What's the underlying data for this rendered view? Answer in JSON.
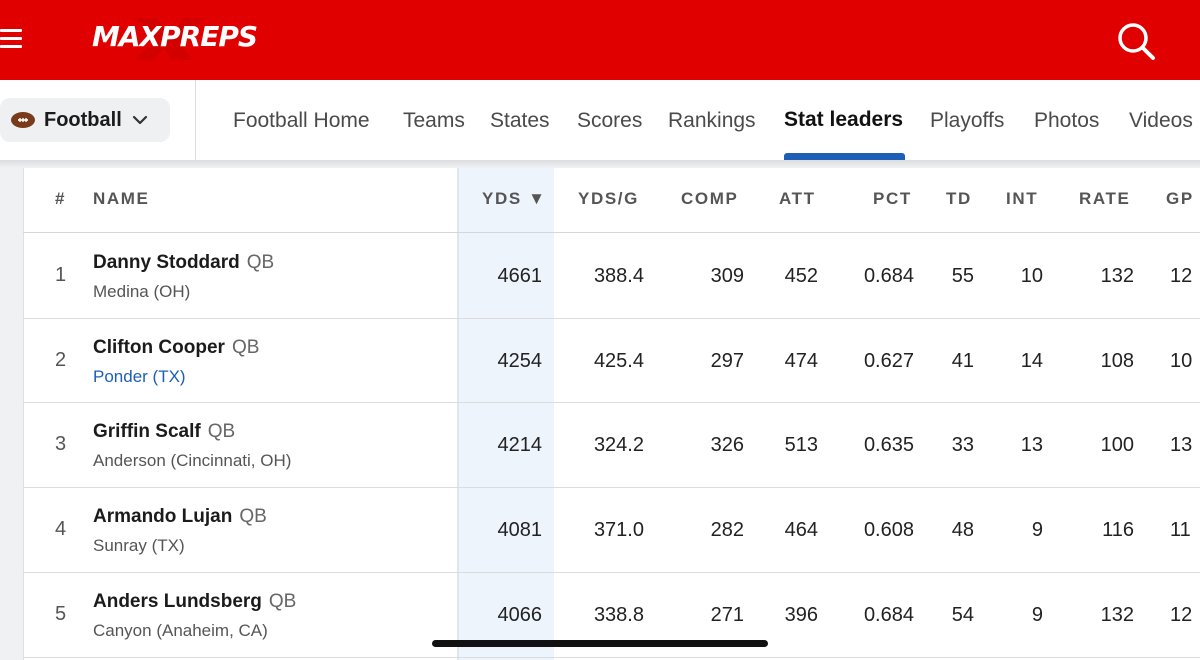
{
  "topbar": {
    "brand": "MAXPREPS",
    "bg_color": "#e00000",
    "menu_icon": "hamburger-icon",
    "search_icon": "search-icon"
  },
  "subnav": {
    "sport": "Football",
    "sport_icon": "football-icon",
    "links": [
      "Football Home",
      "Teams",
      "States",
      "Scores",
      "Rankings",
      "Stat leaders",
      "Playoffs",
      "Photos",
      "Videos"
    ],
    "active": "Stat leaders",
    "accent_color": "#1d5fb5"
  },
  "table": {
    "headers": {
      "rank": "#",
      "name": "NAME",
      "yds": "YDS ▼",
      "ydsg": "YDS/G",
      "comp": "COMP",
      "att": "ATT",
      "pct": "PCT",
      "td": "TD",
      "int": "INT",
      "rate": "RATE",
      "gp": "GP"
    },
    "rows": [
      {
        "rank": "1",
        "name": "Danny Stoddard",
        "pos": "QB",
        "school": "Medina (OH)",
        "school_link": false,
        "yds": "4661",
        "ydsg": "388.4",
        "comp": "309",
        "att": "452",
        "pct": "0.684",
        "td": "55",
        "int": "10",
        "rate": "132",
        "gp": "12"
      },
      {
        "rank": "2",
        "name": "Clifton Cooper",
        "pos": "QB",
        "school": "Ponder (TX)",
        "school_link": true,
        "yds": "4254",
        "ydsg": "425.4",
        "comp": "297",
        "att": "474",
        "pct": "0.627",
        "td": "41",
        "int": "14",
        "rate": "108",
        "gp": "10"
      },
      {
        "rank": "3",
        "name": "Griffin Scalf",
        "pos": "QB",
        "school": "Anderson (Cincinnati, OH)",
        "school_link": false,
        "yds": "4214",
        "ydsg": "324.2",
        "comp": "326",
        "att": "513",
        "pct": "0.635",
        "td": "33",
        "int": "13",
        "rate": "100",
        "gp": "13"
      },
      {
        "rank": "4",
        "name": "Armando Lujan",
        "pos": "QB",
        "school": "Sunray (TX)",
        "school_link": false,
        "yds": "4081",
        "ydsg": "371.0",
        "comp": "282",
        "att": "464",
        "pct": "0.608",
        "td": "48",
        "int": "9",
        "rate": "116",
        "gp": "11"
      },
      {
        "rank": "5",
        "name": "Anders Lundsberg",
        "pos": "QB",
        "school": "Canyon (Anaheim, CA)",
        "school_link": false,
        "yds": "4066",
        "ydsg": "338.8",
        "comp": "271",
        "att": "396",
        "pct": "0.684",
        "td": "54",
        "int": "9",
        "rate": "132",
        "gp": "12"
      }
    ]
  }
}
